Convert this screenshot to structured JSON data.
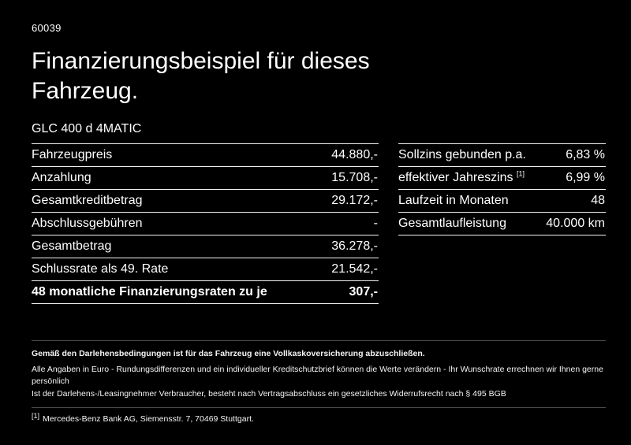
{
  "page": {
    "code": "60039",
    "title": "Finanzierungsbeispiel für dieses Fahrzeug.",
    "vehicle": "GLC 400 d 4MATIC"
  },
  "left_table": {
    "rows": [
      {
        "label": "Fahrzeugpreis",
        "value": "44.880,-"
      },
      {
        "label": "Anzahlung",
        "value": "15.708,-"
      },
      {
        "label": "Gesamtkreditbetrag",
        "value": "29.172,-"
      },
      {
        "label": "Abschlussgebühren",
        "value": "-"
      },
      {
        "label": "Gesamtbetrag",
        "value": "36.278,-"
      },
      {
        "label": "Schlussrate als 49. Rate",
        "value": "21.542,-"
      },
      {
        "label": "48 monatliche Finanzierungsraten zu je",
        "value": "307,-"
      }
    ]
  },
  "right_table": {
    "rows": [
      {
        "label": "Sollzins gebunden p.a.",
        "value": "6,83 %"
      },
      {
        "label": "effektiver Jahreszins",
        "footnote": "[1]",
        "value": "6,99 %"
      },
      {
        "label": "Laufzeit in Monaten",
        "value": "48"
      },
      {
        "label": "Gesamtlaufleistung",
        "value": "40.000 km"
      }
    ]
  },
  "footer": {
    "line1": "Gemäß den Darlehensbedingungen ist für das Fahrzeug eine Vollkaskoversicherung abzuschließen.",
    "line2": "Alle Angaben in Euro - Rundungsdifferenzen und ein individueller Kreditschutzbrief können die Werte verändern - Ihr Wunschrate errechnen wir Ihnen gerne persönlich",
    "line3": "Ist der Darlehens-/Leasingnehmer Verbraucher, besteht nach Vertragsabschluss ein gesetzliches Widerrufsrecht nach § 495 BGB",
    "footnote_marker": "[1]",
    "footnote_text": "Mercedes-Benz Bank AG, Siemensstr. 7, 70469 Stuttgart."
  }
}
